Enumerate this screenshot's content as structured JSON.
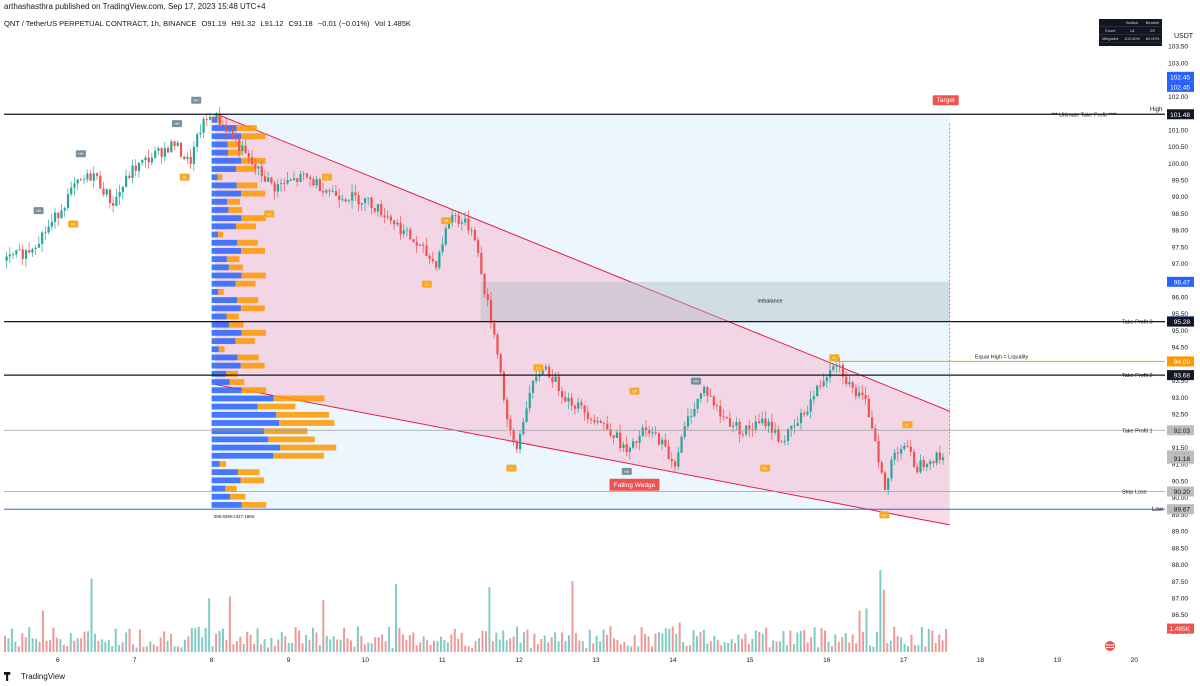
{
  "header": {
    "published": "arthashasthra published on TradingView.com, Sep 17, 2023 15:48 UTC+4",
    "symbol": "QNT / TetherUS PERPETUAL CONTRACT, 1h, BINANCE",
    "ohlc": [
      "O91.19",
      "H91.32",
      "L91.12",
      "C91.18",
      "−0.01 (−0.01%)",
      "Vol 1.485K"
    ]
  },
  "footer": {
    "brand": "TradingView"
  },
  "currency": "USDT",
  "stats_table": {
    "headers": [
      "",
      "Bullish",
      "Bearish"
    ],
    "rows": [
      [
        "Count",
        "14",
        "25"
      ],
      [
        "Mitigated",
        "100.00%",
        "84.00%"
      ]
    ]
  },
  "colors": {
    "up": "#26a69a",
    "down": "#ef5350",
    "wedge": "#e91e45",
    "level": "#131722",
    "orange": "#ff9800",
    "blue": "#2962ff"
  },
  "chart_data": {
    "type": "candlestick",
    "y_range": [
      85.4,
      104.0
    ],
    "y_ticks": [
      86.0,
      86.5,
      87.0,
      87.5,
      88.0,
      88.5,
      89.0,
      89.5,
      90.0,
      90.5,
      91.0,
      91.5,
      92.0,
      92.5,
      93.0,
      93.5,
      94.0,
      94.5,
      95.0,
      95.5,
      96.0,
      96.5,
      97.0,
      97.5,
      98.0,
      98.5,
      99.0,
      99.5,
      100.0,
      100.5,
      101.0,
      101.5,
      102.0,
      102.5,
      103.0,
      103.5
    ],
    "x_range": [
      5.3,
      20.4
    ],
    "x_ticks": [
      "6",
      "7",
      "8",
      "9",
      "10",
      "11",
      "12",
      "13",
      "14",
      "15",
      "16",
      "17",
      "18",
      "19",
      "20"
    ],
    "price_path": [
      [
        5.3,
        97.1
      ],
      [
        5.6,
        97.4
      ],
      [
        5.9,
        98.2
      ],
      [
        6.2,
        99.3
      ],
      [
        6.45,
        99.7
      ],
      [
        6.7,
        98.8
      ],
      [
        6.95,
        99.8
      ],
      [
        7.2,
        100.2
      ],
      [
        7.5,
        100.6
      ],
      [
        7.7,
        100.0
      ],
      [
        7.85,
        101.1
      ],
      [
        8.0,
        101.5
      ],
      [
        8.2,
        101.0
      ],
      [
        8.5,
        100.0
      ],
      [
        8.8,
        99.3
      ],
      [
        9.2,
        99.6
      ],
      [
        9.6,
        99.1
      ],
      [
        10.0,
        98.9
      ],
      [
        10.3,
        98.4
      ],
      [
        10.6,
        97.7
      ],
      [
        10.9,
        97.0
      ],
      [
        11.1,
        98.5
      ],
      [
        11.4,
        98.0
      ],
      [
        11.5,
        96.6
      ],
      [
        11.7,
        94.5
      ],
      [
        11.85,
        92.0
      ],
      [
        11.95,
        91.4
      ],
      [
        12.1,
        93.0
      ],
      [
        12.3,
        94.0
      ],
      [
        12.6,
        93.0
      ],
      [
        12.9,
        92.5
      ],
      [
        13.2,
        92.0
      ],
      [
        13.4,
        91.3
      ],
      [
        13.6,
        92.0
      ],
      [
        13.8,
        91.8
      ],
      [
        14.0,
        91.0
      ],
      [
        14.2,
        92.5
      ],
      [
        14.4,
        93.3
      ],
      [
        14.6,
        92.5
      ],
      [
        14.9,
        92.0
      ],
      [
        15.2,
        92.3
      ],
      [
        15.4,
        91.7
      ],
      [
        15.6,
        92.2
      ],
      [
        15.8,
        93.0
      ],
      [
        16.1,
        94.2
      ],
      [
        16.3,
        93.3
      ],
      [
        16.5,
        92.8
      ],
      [
        16.6,
        92.0
      ],
      [
        16.75,
        90.1
      ],
      [
        16.85,
        91.4
      ],
      [
        17.0,
        91.6
      ],
      [
        17.15,
        90.9
      ],
      [
        17.3,
        91.2
      ],
      [
        17.5,
        91.2
      ]
    ],
    "levels": [
      {
        "price": 101.48,
        "label": "*** Ultimate Take Profit ****"
      },
      {
        "price": 95.28,
        "label": "Take Profit 3"
      },
      {
        "price": 93.68,
        "label": "Take Profit 2"
      },
      {
        "price": 92.03,
        "label": "Take Profit 1"
      },
      {
        "price": 90.2,
        "label": "Stop Loss"
      }
    ],
    "equal_high": {
      "price": 94.09,
      "label": "Equal High = Liquidity"
    },
    "imbalance": {
      "top": 96.47,
      "bottom": 95.29,
      "label": "imbalance"
    },
    "low_line": {
      "price": 89.67,
      "label": "Low"
    },
    "high_line": {
      "price": 101.49,
      "label": "High"
    },
    "wedge_label": "Falling Wedge",
    "target_label": "Target",
    "price_tags": [
      {
        "value": "102.45",
        "color": "#2962ff"
      },
      {
        "value": "101.49",
        "color": "#ffffff"
      },
      {
        "value": "101.48",
        "color": "#131722"
      },
      {
        "value": "96.47",
        "color": "#2962ff"
      },
      {
        "value": "95.29",
        "color": "#2962ff"
      },
      {
        "value": "95.28",
        "color": "#131722"
      },
      {
        "value": "94.09",
        "color": "#ff9800"
      },
      {
        "value": "93.68",
        "color": "#131722"
      },
      {
        "value": "92.03",
        "color": "#bdbdbd"
      },
      {
        "value": "91.28",
        "color": "#bdbdbd"
      },
      {
        "value": "91.18",
        "color": "#bdbdbd"
      },
      {
        "value": "90.20",
        "color": "#bdbdbd"
      },
      {
        "value": "89.67",
        "color": "#bdbdbd"
      },
      {
        "value": "1.485K",
        "color": "#ef5350"
      }
    ],
    "volume_profile": [
      "305.836K×327.186K"
    ],
    "pivot_labels": [
      "HH",
      "HL",
      "HH",
      "HH",
      "HH",
      "HL",
      "LH",
      "LL",
      "LH",
      "LL",
      "LH",
      "LL",
      "LH",
      "HH",
      "HL",
      "HH",
      "LL",
      "LH",
      "LL"
    ]
  }
}
